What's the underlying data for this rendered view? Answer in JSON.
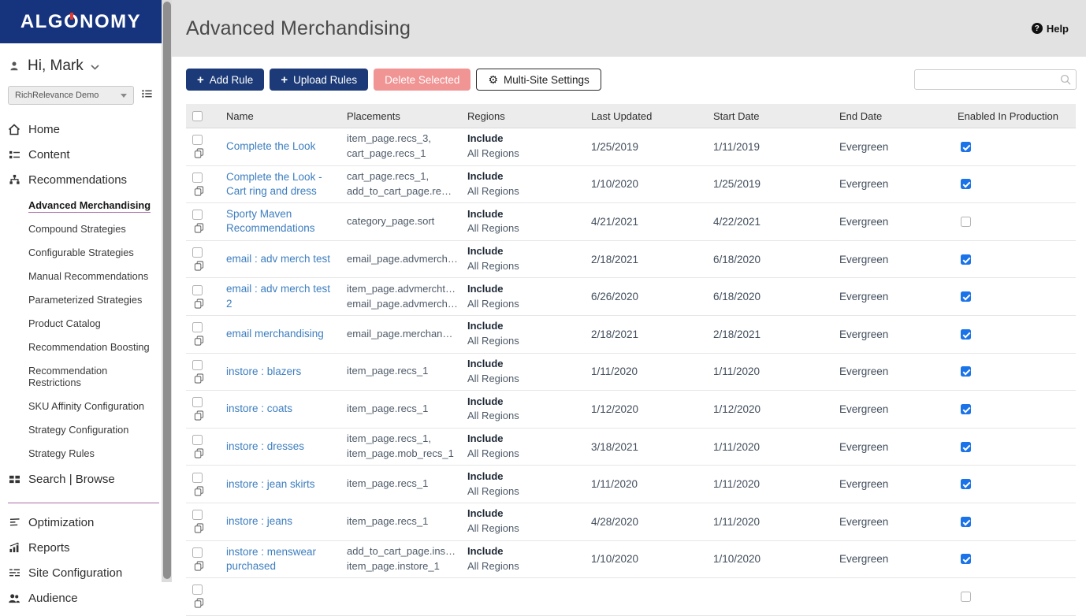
{
  "brand": {
    "logo_pre": "ALG",
    "logo_o": "O",
    "logo_post": "NOMY"
  },
  "icons": {
    "plus": "+",
    "gear": "⚙",
    "help_q": "?"
  },
  "sidebar": {
    "greeting": "Hi, Mark",
    "site_selector": {
      "value": "RichRelevance Demo"
    },
    "nav_home": "Home",
    "nav_content": "Content",
    "nav_recommendations": "Recommendations",
    "sub_nav": [
      "Advanced Merchandising",
      "Compound Strategies",
      "Configurable Strategies",
      "Manual Recommendations",
      "Parameterized Strategies",
      "Product Catalog",
      "Recommendation Boosting",
      "Recommendation Restrictions",
      "SKU Affinity Configuration",
      "Strategy Configuration",
      "Strategy Rules"
    ],
    "active_item": "Advanced Merchandising",
    "nav_search_browse": "Search | Browse",
    "nav_optimization": "Optimization",
    "nav_reports": "Reports",
    "nav_site_configuration": "Site Configuration",
    "nav_audience": "Audience"
  },
  "header": {
    "title": "Advanced Merchandising",
    "help_label": "Help"
  },
  "toolbar": {
    "add_rule": "Add Rule",
    "upload_rules": "Upload Rules",
    "delete_selected": "Delete Selected",
    "multi_site_settings": "Multi-Site Settings",
    "search_value": ""
  },
  "colors": {
    "navy": "#16337e",
    "button_navy": "#1b3a77",
    "danger_salmon": "#f09494",
    "link_blue": "#3d7ebf",
    "checkbox_blue": "#1a73e8",
    "divider_purple": "#a86ca0",
    "logo_accent_red": "#e23b2e"
  },
  "table": {
    "headers": [
      "Name",
      "Placements",
      "Regions",
      "Last Updated",
      "Start Date",
      "End Date",
      "Enabled In Production"
    ],
    "select_all_checked": false,
    "partial_row_visible": true,
    "rows": [
      {
        "name": "Complete the Look",
        "placements": [
          "item_page.recs_3,",
          "cart_page.recs_1"
        ],
        "region_mode": "Include",
        "region_scope": "All Regions",
        "last_updated": "1/25/2019",
        "start_date": "1/11/2019",
        "end_date": "Evergreen",
        "enabled": true
      },
      {
        "name": "Complete the Look - Cart ring and dress",
        "placements": [
          "cart_page.recs_1,",
          "add_to_cart_page.re…"
        ],
        "region_mode": "Include",
        "region_scope": "All Regions",
        "last_updated": "1/10/2020",
        "start_date": "1/25/2019",
        "end_date": "Evergreen",
        "enabled": true
      },
      {
        "name": "Sporty Maven Recommendations",
        "placements": [
          "category_page.sort"
        ],
        "region_mode": "Include",
        "region_scope": "All Regions",
        "last_updated": "4/21/2021",
        "start_date": "4/22/2021",
        "end_date": "Evergreen",
        "enabled": false
      },
      {
        "name": "email : adv merch test",
        "placements": [
          "email_page.advmerch…"
        ],
        "region_mode": "Include",
        "region_scope": "All Regions",
        "last_updated": "2/18/2021",
        "start_date": "6/18/2020",
        "end_date": "Evergreen",
        "enabled": true
      },
      {
        "name": "email : adv merch test 2",
        "placements": [
          "item_page.advmercht…",
          "email_page.advmerch…"
        ],
        "region_mode": "Include",
        "region_scope": "All Regions",
        "last_updated": "6/26/2020",
        "start_date": "6/18/2020",
        "end_date": "Evergreen",
        "enabled": true
      },
      {
        "name": "email merchandising",
        "placements": [
          "email_page.merchan…"
        ],
        "region_mode": "Include",
        "region_scope": "All Regions",
        "last_updated": "2/18/2021",
        "start_date": "2/18/2021",
        "end_date": "Evergreen",
        "enabled": true
      },
      {
        "name": "instore : blazers",
        "placements": [
          "item_page.recs_1"
        ],
        "region_mode": "Include",
        "region_scope": "All Regions",
        "last_updated": "1/11/2020",
        "start_date": "1/11/2020",
        "end_date": "Evergreen",
        "enabled": true
      },
      {
        "name": "instore : coats",
        "placements": [
          "item_page.recs_1"
        ],
        "region_mode": "Include",
        "region_scope": "All Regions",
        "last_updated": "1/12/2020",
        "start_date": "1/12/2020",
        "end_date": "Evergreen",
        "enabled": true
      },
      {
        "name": "instore : dresses",
        "placements": [
          "item_page.recs_1,",
          "item_page.mob_recs_1"
        ],
        "region_mode": "Include",
        "region_scope": "All Regions",
        "last_updated": "3/18/2021",
        "start_date": "1/11/2020",
        "end_date": "Evergreen",
        "enabled": true
      },
      {
        "name": "instore : jean skirts",
        "placements": [
          "item_page.recs_1"
        ],
        "region_mode": "Include",
        "region_scope": "All Regions",
        "last_updated": "1/11/2020",
        "start_date": "1/11/2020",
        "end_date": "Evergreen",
        "enabled": true
      },
      {
        "name": "instore : jeans",
        "placements": [
          "item_page.recs_1"
        ],
        "region_mode": "Include",
        "region_scope": "All Regions",
        "last_updated": "4/28/2020",
        "start_date": "1/11/2020",
        "end_date": "Evergreen",
        "enabled": true
      },
      {
        "name": "instore : menswear purchased",
        "placements": [
          "add_to_cart_page.ins…",
          "item_page.instore_1"
        ],
        "region_mode": "Include",
        "region_scope": "All Regions",
        "last_updated": "1/10/2020",
        "start_date": "1/10/2020",
        "end_date": "Evergreen",
        "enabled": true
      }
    ]
  }
}
